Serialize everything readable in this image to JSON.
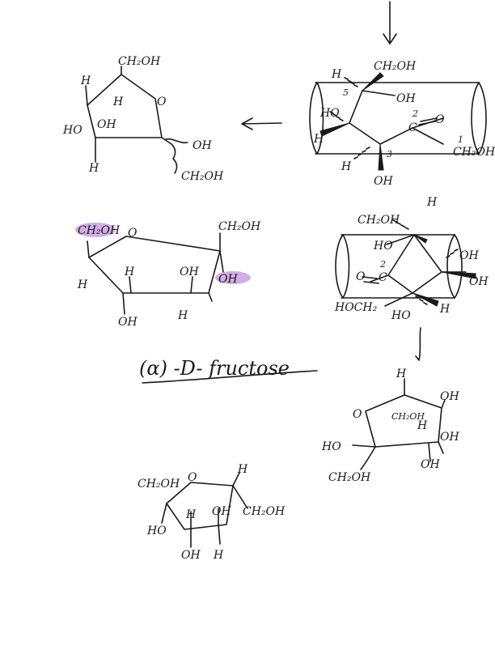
{
  "title": "(α) -D- fructose",
  "colors": {
    "ink": "#1a1a1a",
    "highlight": "#c9a0e0",
    "paper": "#ffffff"
  },
  "structures": {
    "s1": {
      "ch2oh": "CH₂OH",
      "h_left": "H",
      "h_inner": "H",
      "ho": "HO",
      "oh_inner": "OH",
      "ring_o": "O",
      "h_bottom": "H",
      "oh_right": "OH",
      "ch2oh_bottom": "CH₂OH"
    },
    "s2": {
      "ch2oh_top": "CH₂OH",
      "h_top": "H",
      "c5": "5",
      "oh_5": "OH",
      "ho": "HO",
      "h_left": "H",
      "c2": "2",
      "c_carbonyl": "C",
      "o_carbonyl": "O",
      "c1": "1",
      "ch2oh_right": "CH₂OH",
      "c3": "3",
      "h_3": "H",
      "oh_bottom": "OH"
    },
    "s3": {
      "ch2oh_left": "CH₂OH",
      "ring_o": "O",
      "ch2oh_right": "CH₂OH",
      "h_left": "H",
      "h_c4": "H",
      "oh_c3": "OH",
      "oh_right": "OH",
      "oh_bottom": "OH",
      "h_bottom": "H"
    },
    "s4": {
      "ch2oh_top": "CH₂OH",
      "h_top": "H",
      "ho": "HO",
      "oh_right_top": "OH",
      "oh_right": "OH",
      "c2": "2",
      "o_carbonyl": "O",
      "c_carbonyl": "C",
      "hoch2": "HOCH₂",
      "ho_bottom": "HO",
      "h_bottom": "H"
    },
    "s5": {
      "h_top": "H",
      "oh_tr": "OH",
      "ring_o": "O",
      "ch2oh_inner": "CH₂OH",
      "h_inner": "H",
      "oh_right": "OH",
      "ho": "HO",
      "oh_bottom": "OH",
      "ch2oh_bottom": "CH₂OH"
    },
    "s6": {
      "ch2oh_left": "CH₂OH",
      "ring_o": "O",
      "h_top": "H",
      "h_inner1": "H",
      "oh_inner": "OH",
      "ch2oh_right": "CH₂OH",
      "ho": "HO",
      "oh_bottom": "OH",
      "h_bottom": "H"
    }
  }
}
